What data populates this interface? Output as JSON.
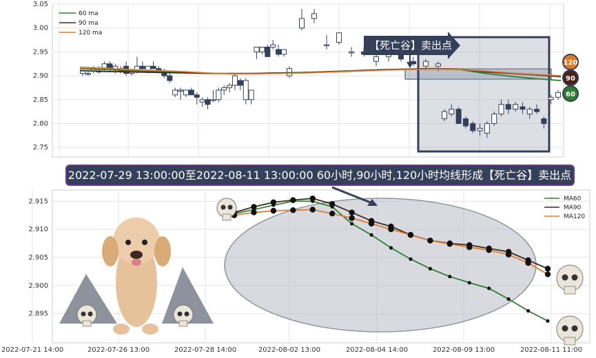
{
  "chart_data": [
    {
      "type": "candlestick",
      "ylim": [
        2.73,
        3.05
      ],
      "yticks": [
        "3.05",
        "3.00",
        "2.95",
        "2.90",
        "2.85",
        "2.80",
        "2.75"
      ],
      "legend": [
        "60 ma",
        "90 ma",
        "120 ma"
      ],
      "colors": {
        "ma60": "#2e7d32",
        "ma90": "#3e2a1e",
        "ma120": "#e07a2e",
        "up": "#ffffff",
        "down": "#34405a"
      },
      "candles": [
        [
          2.905,
          2.91,
          2.9,
          2.91
        ],
        [
          2.905,
          2.91,
          2.9,
          2.905
        ],
        [
          2.91,
          2.92,
          2.905,
          2.915
        ],
        [
          2.91,
          2.92,
          2.905,
          2.91
        ],
        [
          2.915,
          2.93,
          2.91,
          2.925
        ],
        [
          2.925,
          2.93,
          2.91,
          2.915
        ],
        [
          2.915,
          2.925,
          2.905,
          2.92
        ],
        [
          2.91,
          2.92,
          2.905,
          2.915
        ],
        [
          2.92,
          2.93,
          2.9,
          2.905
        ],
        [
          2.905,
          2.915,
          2.9,
          2.91
        ],
        [
          2.91,
          2.94,
          2.905,
          2.92
        ],
        [
          2.92,
          2.93,
          2.91,
          2.915
        ],
        [
          2.91,
          2.92,
          2.905,
          2.92
        ],
        [
          2.92,
          2.93,
          2.915,
          2.915
        ],
        [
          2.915,
          2.92,
          2.905,
          2.91
        ],
        [
          2.91,
          2.915,
          2.895,
          2.9
        ],
        [
          2.9,
          2.905,
          2.885,
          2.89
        ],
        [
          2.86,
          2.875,
          2.855,
          2.87
        ],
        [
          2.87,
          2.875,
          2.85,
          2.87
        ],
        [
          2.86,
          2.87,
          2.855,
          2.87
        ],
        [
          2.87,
          2.875,
          2.86,
          2.86
        ],
        [
          2.86,
          2.865,
          2.84,
          2.855
        ],
        [
          2.845,
          2.855,
          2.835,
          2.85
        ],
        [
          2.85,
          2.855,
          2.83,
          2.84
        ],
        [
          2.85,
          2.87,
          2.845,
          2.85
        ],
        [
          2.85,
          2.875,
          2.845,
          2.87
        ],
        [
          2.87,
          2.88,
          2.86,
          2.875
        ],
        [
          2.875,
          2.885,
          2.865,
          2.88
        ],
        [
          2.88,
          2.905,
          2.87,
          2.9
        ],
        [
          2.89,
          2.895,
          2.87,
          2.88
        ],
        [
          2.85,
          2.895,
          2.84,
          2.89
        ],
        [
          2.85,
          2.87,
          2.84,
          2.87
        ],
        [
          2.95,
          2.96,
          2.935,
          2.96
        ],
        [
          2.95,
          2.96,
          2.945,
          2.96
        ],
        [
          2.96,
          2.965,
          2.94,
          2.94
        ],
        [
          2.96,
          2.975,
          2.955,
          2.965
        ],
        [
          2.955,
          2.965,
          2.94,
          2.945
        ],
        [
          2.945,
          2.955,
          2.94,
          2.955
        ],
        [
          2.9,
          2.92,
          2.895,
          2.915
        ],
        [
          3.0,
          3.04,
          2.995,
          3.02
        ],
        [
          3.02,
          3.04,
          3.01,
          3.03
        ],
        [
          2.965,
          2.985,
          2.955,
          2.965
        ],
        [
          2.97,
          2.99,
          2.965,
          2.99
        ],
        [
          2.95,
          2.96,
          2.94,
          2.95
        ],
        [
          2.95,
          2.96,
          2.94,
          2.945
        ],
        [
          2.93,
          2.95,
          2.92,
          2.94
        ],
        [
          2.94,
          2.96,
          2.93,
          2.95
        ],
        [
          2.945,
          2.95,
          2.93,
          2.935
        ],
        [
          2.93,
          2.94,
          2.92,
          2.925
        ],
        [
          2.92,
          2.935,
          2.915,
          2.93
        ],
        [
          2.92,
          2.93,
          2.91,
          2.925
        ],
        [
          2.81,
          2.83,
          2.805,
          2.825
        ],
        [
          2.82,
          2.84,
          2.815,
          2.83
        ],
        [
          2.83,
          2.835,
          2.8,
          2.8
        ],
        [
          2.81,
          2.815,
          2.79,
          2.795
        ],
        [
          2.8,
          2.805,
          2.78,
          2.785
        ],
        [
          2.785,
          2.8,
          2.775,
          2.79
        ],
        [
          2.78,
          2.805,
          2.77,
          2.8
        ],
        [
          2.8,
          2.825,
          2.795,
          2.82
        ],
        [
          2.82,
          2.85,
          2.815,
          2.84
        ],
        [
          2.84,
          2.85,
          2.82,
          2.83
        ],
        [
          2.83,
          2.845,
          2.825,
          2.84
        ],
        [
          2.835,
          2.845,
          2.82,
          2.83
        ],
        [
          2.82,
          2.835,
          2.81,
          2.83
        ],
        [
          2.83,
          2.84,
          2.82,
          2.825
        ],
        [
          2.81,
          2.815,
          2.79,
          2.8
        ],
        [
          2.85,
          2.86,
          2.84,
          2.855
        ],
        [
          2.855,
          2.87,
          2.85,
          2.865
        ]
      ],
      "ma60": [
        2.915,
        2.913,
        2.911,
        2.909,
        2.907,
        2.905,
        2.904,
        2.905,
        2.906,
        2.907,
        2.908,
        2.91,
        2.912,
        2.914,
        2.915,
        2.913,
        2.905,
        2.899,
        2.894,
        2.89
      ],
      "ma90": [
        2.911,
        2.909,
        2.908,
        2.907,
        2.906,
        2.905,
        2.905,
        2.905,
        2.906,
        2.907,
        2.909,
        2.911,
        2.913,
        2.914,
        2.915,
        2.914,
        2.908,
        2.905,
        2.902,
        2.898
      ],
      "ma120": [
        2.918,
        2.916,
        2.913,
        2.911,
        2.909,
        2.906,
        2.904,
        2.904,
        2.905,
        2.906,
        2.908,
        2.91,
        2.912,
        2.913,
        2.914,
        2.913,
        2.91,
        2.906,
        2.903,
        2.9
      ],
      "badges": [
        "120",
        "90",
        "60"
      ],
      "annotation": "【死亡谷】卖出点"
    },
    {
      "type": "line",
      "title": "2022-07-29 13:00:00至2022-08-11 13:00:00 60小时,90小时,120小时均线形成【死亡谷】卖出点",
      "ylim": [
        2.8925,
        2.9165
      ],
      "yticks": [
        "2.915",
        "2.910",
        "2.905",
        "2.900",
        "2.895"
      ],
      "xticks": [
        "2022-07-21 14:00",
        "2022-07-26 13:00",
        "2022-07-28 14:00",
        "2022-08-02 13:00",
        "2022-08-04 14:00",
        "2022-08-09 13:00",
        "2022-08-11 11:00"
      ],
      "series": [
        {
          "name": "MA60",
          "color": "#2e7d32",
          "values": [
            2.9128,
            2.9135,
            2.9143,
            2.915,
            2.915,
            2.914,
            2.911,
            2.909,
            2.9067,
            2.9047,
            2.903,
            2.9016,
            2.9005,
            2.8995,
            2.8976,
            2.8955,
            2.8937
          ]
        },
        {
          "name": "MA90",
          "color": "#3e2a1e",
          "values": [
            2.913,
            2.914,
            2.9148,
            2.9152,
            2.9155,
            2.9145,
            2.913,
            2.9115,
            2.9105,
            2.909,
            2.908,
            2.9075,
            2.9072,
            2.9066,
            2.906,
            2.9045,
            2.903
          ]
        },
        {
          "name": "MA120",
          "color": "#e07a2e",
          "values": [
            2.9125,
            2.913,
            2.9133,
            2.9134,
            2.9135,
            2.9128,
            2.912,
            2.911,
            2.91,
            2.909,
            2.908,
            2.9074,
            2.9068,
            2.9063,
            2.9055,
            2.904,
            2.902
          ]
        }
      ]
    }
  ]
}
